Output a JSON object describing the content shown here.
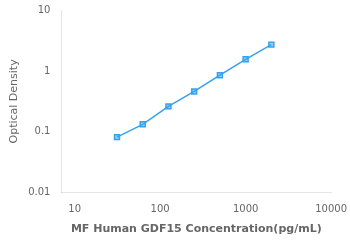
{
  "chart_data": {
    "type": "line",
    "x": [
      31.25,
      62.5,
      125,
      250,
      500,
      1000,
      2000
    ],
    "values": [
      0.082,
      0.133,
      0.262,
      0.46,
      0.85,
      1.55,
      2.7
    ],
    "xlabel": "MF Human GDF15 Concentration(pg/mL)",
    "ylabel": "Optical Density",
    "xlim": [
      7,
      10000
    ],
    "ylim": [
      0.01,
      10
    ],
    "xticks": [
      10,
      100,
      1000,
      10000
    ],
    "yticks": [
      0.01,
      0.1,
      1,
      10
    ],
    "log": true,
    "grid": false,
    "marker": "square"
  }
}
